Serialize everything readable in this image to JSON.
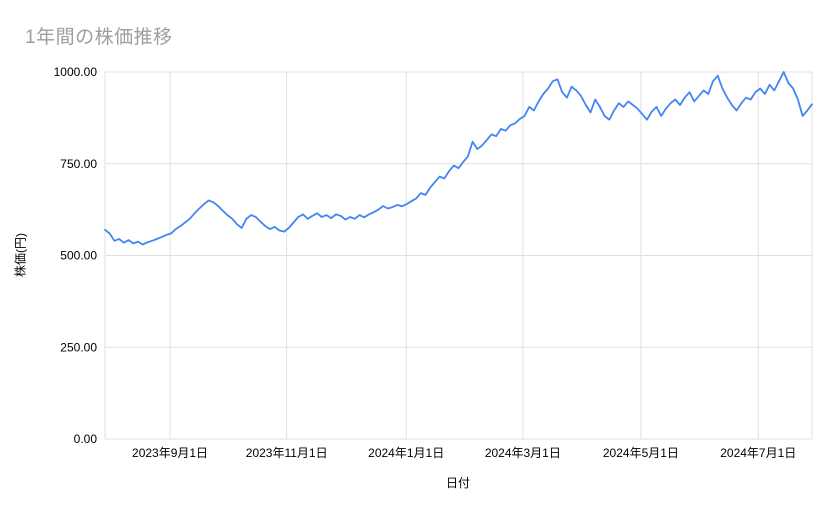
{
  "chart_data": {
    "type": "line",
    "title": "1年間の株価推移",
    "xlabel": "日付",
    "ylabel": "株価(円)",
    "ylim": [
      0,
      1000
    ],
    "grid": true,
    "legend": "none",
    "series_name": "株価",
    "x_ticks": [
      {
        "label": "2023年9月1日",
        "pos": 0.092
      },
      {
        "label": "2023年11月1日",
        "pos": 0.257
      },
      {
        "label": "2024年1月1日",
        "pos": 0.426
      },
      {
        "label": "2024年3月1日",
        "pos": 0.591
      },
      {
        "label": "2024年5月1日",
        "pos": 0.758
      },
      {
        "label": "2024年7月1日",
        "pos": 0.924
      }
    ],
    "y_ticks": [
      {
        "label": "0.00",
        "value": 0
      },
      {
        "label": "250.00",
        "value": 250
      },
      {
        "label": "500.00",
        "value": 500
      },
      {
        "label": "750.00",
        "value": 750
      },
      {
        "label": "1000.00",
        "value": 1000
      }
    ],
    "values": [
      570,
      560,
      540,
      545,
      535,
      542,
      533,
      538,
      530,
      536,
      540,
      545,
      550,
      556,
      560,
      572,
      580,
      590,
      600,
      615,
      628,
      640,
      650,
      645,
      635,
      622,
      610,
      600,
      585,
      575,
      600,
      610,
      605,
      592,
      580,
      572,
      578,
      568,
      565,
      575,
      590,
      605,
      612,
      600,
      608,
      615,
      605,
      610,
      602,
      612,
      608,
      598,
      605,
      600,
      610,
      604,
      612,
      618,
      625,
      635,
      628,
      632,
      638,
      634,
      640,
      648,
      655,
      670,
      665,
      685,
      700,
      715,
      710,
      730,
      745,
      738,
      755,
      770,
      810,
      790,
      800,
      815,
      830,
      825,
      845,
      840,
      855,
      860,
      872,
      880,
      905,
      895,
      920,
      940,
      955,
      975,
      980,
      945,
      930,
      960,
      950,
      935,
      910,
      890,
      925,
      905,
      880,
      870,
      895,
      915,
      905,
      920,
      910,
      900,
      885,
      870,
      892,
      905,
      880,
      900,
      915,
      925,
      910,
      930,
      945,
      920,
      935,
      950,
      940,
      975,
      990,
      955,
      930,
      910,
      895,
      915,
      930,
      925,
      945,
      955,
      940,
      965,
      950,
      975,
      1000,
      970,
      955,
      925,
      880,
      895,
      912
    ],
    "colors": {
      "line": "#4285f4",
      "grid": "#e0e0e0",
      "tick_text": "#000000",
      "title_text": "#9e9e9e",
      "background": "#ffffff"
    }
  }
}
